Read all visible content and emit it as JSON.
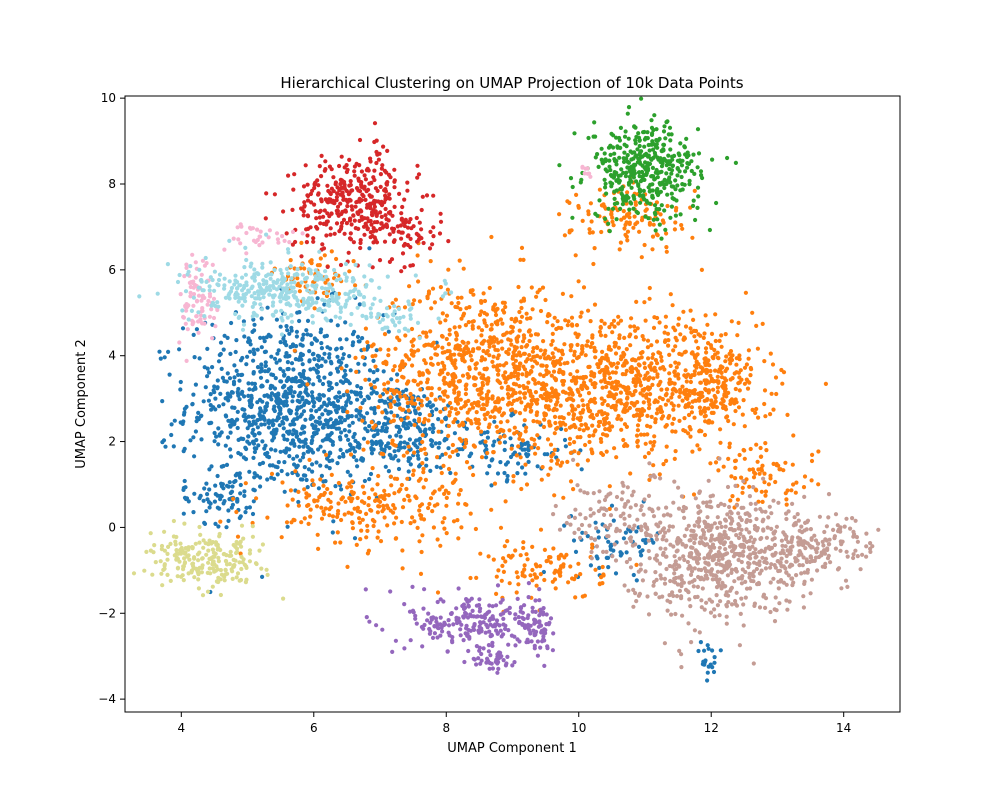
{
  "chart_data": {
    "type": "scatter",
    "title": "Hierarchical Clustering on UMAP Projection of 10k Data Points",
    "xlabel": "UMAP Component 1",
    "ylabel": "UMAP Component 2",
    "xlim": [
      3.15,
      14.85
    ],
    "ylim": [
      -4.3,
      10.05
    ],
    "xticks": [
      4,
      6,
      8,
      10,
      12,
      14
    ],
    "xtick_labels": [
      "4",
      "6",
      "8",
      "10",
      "12",
      "14"
    ],
    "yticks": [
      -4,
      -2,
      0,
      2,
      4,
      6,
      8,
      10
    ],
    "ytick_labels": [
      "−4",
      "−2",
      "0",
      "2",
      "4",
      "6",
      "8",
      "10"
    ],
    "grid": false,
    "legend": "none",
    "series": [
      {
        "color": "#1f77b4",
        "regions": [
          {
            "cx": 5.6,
            "cy": 2.9,
            "sx": 0.75,
            "sy": 1.05,
            "n": 900
          },
          {
            "cx": 7.2,
            "cy": 2.3,
            "sx": 0.6,
            "sy": 0.55,
            "n": 280
          },
          {
            "cx": 4.6,
            "cy": 0.7,
            "sx": 0.3,
            "sy": 0.3,
            "n": 70
          },
          {
            "cx": 10.6,
            "cy": -0.3,
            "sx": 0.35,
            "sy": 0.35,
            "n": 60
          },
          {
            "cx": 11.95,
            "cy": -3.2,
            "sx": 0.1,
            "sy": 0.25,
            "n": 20
          },
          {
            "cx": 8.9,
            "cy": 1.8,
            "sx": 0.5,
            "sy": 0.35,
            "n": 90
          }
        ]
      },
      {
        "color": "#ff7f0e",
        "regions": [
          {
            "cx": 8.6,
            "cy": 3.6,
            "sx": 0.9,
            "sy": 1.1,
            "n": 900
          },
          {
            "cx": 10.7,
            "cy": 3.2,
            "sx": 1.0,
            "sy": 0.8,
            "n": 750
          },
          {
            "cx": 12.0,
            "cy": 3.4,
            "sx": 0.35,
            "sy": 0.55,
            "n": 200
          },
          {
            "cx": 6.8,
            "cy": 0.5,
            "sx": 0.8,
            "sy": 0.45,
            "n": 230
          },
          {
            "cx": 10.8,
            "cy": 7.2,
            "sx": 0.45,
            "sy": 0.4,
            "n": 120
          },
          {
            "cx": 9.5,
            "cy": -1.0,
            "sx": 0.45,
            "sy": 0.35,
            "n": 100
          },
          {
            "cx": 12.8,
            "cy": 1.2,
            "sx": 0.4,
            "sy": 0.35,
            "n": 80
          },
          {
            "cx": 6.0,
            "cy": 5.8,
            "sx": 0.3,
            "sy": 0.3,
            "n": 60
          }
        ]
      },
      {
        "color": "#2ca02c",
        "regions": [
          {
            "cx": 11.0,
            "cy": 8.3,
            "sx": 0.42,
            "sy": 0.55,
            "n": 420
          }
        ]
      },
      {
        "color": "#d62728",
        "regions": [
          {
            "cx": 6.6,
            "cy": 7.6,
            "sx": 0.45,
            "sy": 0.55,
            "n": 360
          },
          {
            "cx": 7.4,
            "cy": 6.9,
            "sx": 0.3,
            "sy": 0.3,
            "n": 60
          }
        ]
      },
      {
        "color": "#9467bd",
        "regions": [
          {
            "cx": 8.4,
            "cy": -2.2,
            "sx": 0.5,
            "sy": 0.35,
            "n": 220
          },
          {
            "cx": 9.4,
            "cy": -2.4,
            "sx": 0.15,
            "sy": 0.35,
            "n": 60
          },
          {
            "cx": 8.7,
            "cy": -3.1,
            "sx": 0.15,
            "sy": 0.15,
            "n": 40
          }
        ]
      },
      {
        "color": "#c49c94",
        "regions": [
          {
            "cx": 12.0,
            "cy": -0.6,
            "sx": 0.65,
            "sy": 0.75,
            "n": 620
          },
          {
            "cx": 13.4,
            "cy": -0.5,
            "sx": 0.55,
            "sy": 0.4,
            "n": 200
          },
          {
            "cx": 10.5,
            "cy": 0.3,
            "sx": 0.4,
            "sy": 0.5,
            "n": 90
          }
        ]
      },
      {
        "color": "#f7b6d2",
        "regions": [
          {
            "cx": 4.3,
            "cy": 5.3,
            "sx": 0.15,
            "sy": 0.55,
            "n": 80
          },
          {
            "cx": 5.2,
            "cy": 6.8,
            "sx": 0.3,
            "sy": 0.15,
            "n": 30
          },
          {
            "cx": 10.1,
            "cy": 8.3,
            "sx": 0.08,
            "sy": 0.08,
            "n": 8
          }
        ]
      },
      {
        "color": "#9edae5",
        "regions": [
          {
            "cx": 5.6,
            "cy": 5.5,
            "sx": 0.75,
            "sy": 0.35,
            "n": 360
          },
          {
            "cx": 7.1,
            "cy": 4.9,
            "sx": 0.3,
            "sy": 0.2,
            "n": 40
          }
        ]
      },
      {
        "color": "#dbdb8d",
        "regions": [
          {
            "cx": 4.4,
            "cy": -0.8,
            "sx": 0.42,
            "sy": 0.3,
            "n": 220
          }
        ]
      }
    ]
  }
}
